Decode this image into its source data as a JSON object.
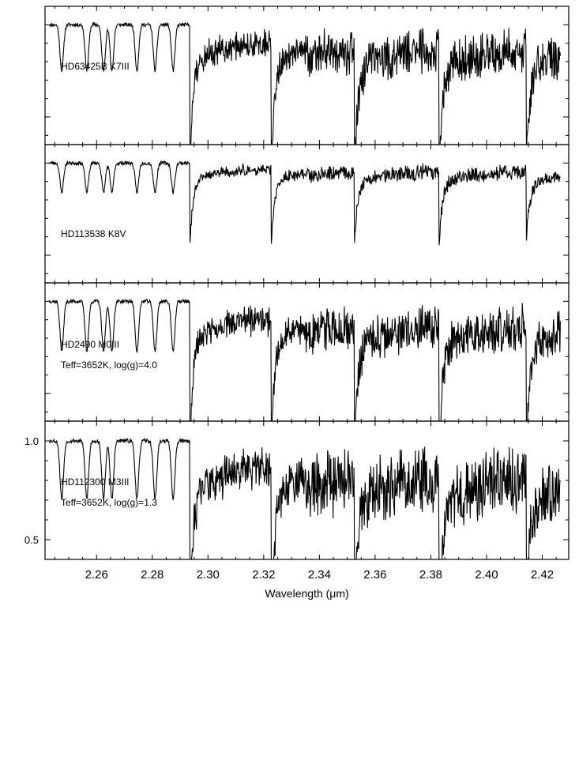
{
  "chart_data": {
    "type": "line",
    "xlabel": "Wavelength (μm)",
    "xlim": [
      2.2415,
      2.4295
    ],
    "x_ticks": [
      "2.26",
      "2.28",
      "2.30",
      "2.32",
      "2.34",
      "2.36",
      "2.38",
      "2.40",
      "2.42"
    ],
    "panels": [
      {
        "name": "HD63425B K7III",
        "labels": [
          "HD63425B  K7III"
        ],
        "ylim": [
          0.35,
          1.1
        ],
        "y_ticks": [],
        "params": {
          "seed": 11,
          "amp": 0.05,
          "depth": 0.55,
          "recovery": 0.12,
          "jag": 0.35
        }
      },
      {
        "name": "HD113538 K8V",
        "labels": [
          "HD113538  K8V"
        ],
        "ylim": [
          0.35,
          1.1
        ],
        "y_ticks": [],
        "params": {
          "seed": 23,
          "amp": 0.015,
          "depth": 0.35,
          "recovery": 0.06,
          "jag": 0.12
        }
      },
      {
        "name": "HD2490 M0III",
        "labels": [
          "HD2490  M0III",
          "Teff=3652K,  log(g)=4.0"
        ],
        "ylim": [
          0.35,
          1.1
        ],
        "y_ticks": [],
        "params": {
          "seed": 37,
          "amp": 0.05,
          "depth": 0.6,
          "recovery": 0.12,
          "jag": 0.35
        }
      },
      {
        "name": "HD112300 M3III",
        "labels": [
          "HD112300  M3III",
          "Teff=3652K,  log(g)=1.3"
        ],
        "ylim": [
          0.4,
          1.1
        ],
        "y_ticks": [
          "1.0",
          "0.5"
        ],
        "params": {
          "seed": 53,
          "amp": 0.06,
          "depth": 0.65,
          "recovery": 0.15,
          "jag": 0.5
        }
      }
    ],
    "bandheads": [
      2.2935,
      2.3227,
      2.3525,
      2.3829,
      2.4142
    ],
    "atomic_lines": [
      2.2475,
      2.2565,
      2.2625,
      2.2655,
      2.2745,
      2.281,
      2.2875
    ],
    "grid": false
  }
}
